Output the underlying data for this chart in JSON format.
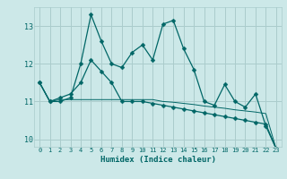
{
  "xlabel": "Humidex (Indice chaleur)",
  "x": [
    0,
    1,
    2,
    3,
    4,
    5,
    6,
    7,
    8,
    9,
    10,
    11,
    12,
    13,
    14,
    15,
    16,
    17,
    18,
    19,
    20,
    21,
    22,
    23
  ],
  "series1": [
    11.5,
    11.0,
    11.0,
    11.1,
    12.0,
    13.3,
    12.6,
    12.0,
    11.9,
    12.3,
    12.5,
    12.1,
    13.05,
    13.15,
    12.4,
    11.85,
    11.0,
    10.9,
    11.45,
    11.0,
    10.85,
    11.2,
    10.35,
    9.75
  ],
  "series2": [
    11.5,
    11.0,
    11.1,
    11.2,
    11.5,
    12.1,
    11.8,
    11.5,
    11.0,
    11.0,
    11.0,
    10.95,
    10.9,
    10.85,
    10.8,
    10.75,
    10.7,
    10.65,
    10.6,
    10.55,
    10.5,
    10.45,
    10.4,
    9.75
  ],
  "series3": [
    11.5,
    11.0,
    11.05,
    11.05,
    11.05,
    11.05,
    11.05,
    11.05,
    11.05,
    11.05,
    11.05,
    11.05,
    11.0,
    10.98,
    10.95,
    10.92,
    10.88,
    10.85,
    10.82,
    10.78,
    10.75,
    10.72,
    10.68,
    9.75
  ],
  "bg_color": "#cce8e8",
  "grid_color": "#aacccc",
  "line_color": "#006666",
  "ylim": [
    9.8,
    13.5
  ],
  "yticks": [
    10,
    11,
    12,
    13
  ],
  "xticks": [
    0,
    1,
    2,
    3,
    4,
    5,
    6,
    7,
    8,
    9,
    10,
    11,
    12,
    13,
    14,
    15,
    16,
    17,
    18,
    19,
    20,
    21,
    22,
    23
  ]
}
